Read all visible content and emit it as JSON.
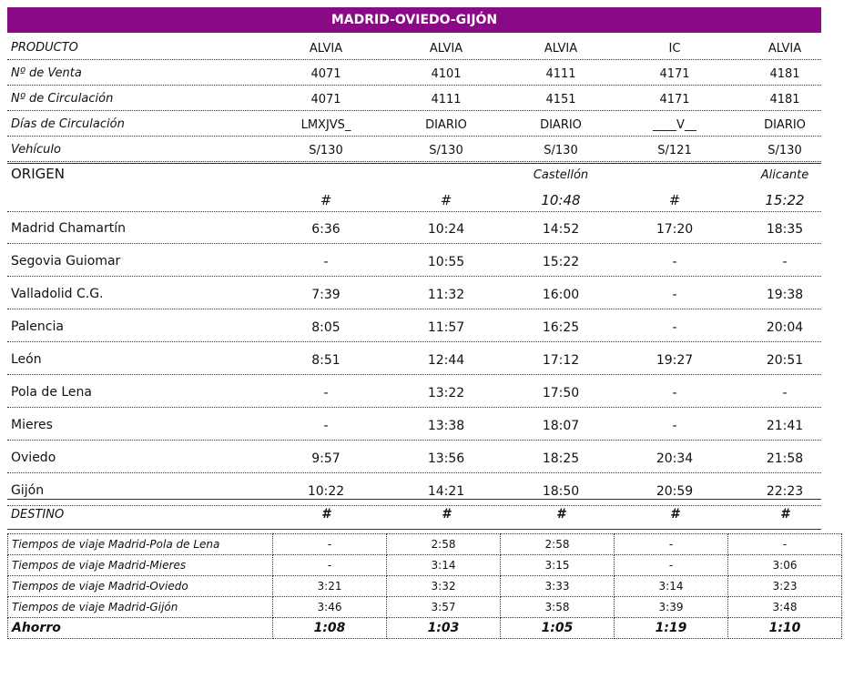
{
  "title": "MADRID-OVIEDO-GIJÓN",
  "header_rows": [
    {
      "label": "PRODUCTO",
      "values": [
        "ALVIA",
        "ALVIA",
        "ALVIA",
        "IC",
        "ALVIA"
      ]
    },
    {
      "label": "Nº de Venta",
      "values": [
        "4071",
        "4101",
        "4111",
        "4171",
        "4181"
      ]
    },
    {
      "label": "Nº de Circulación",
      "values": [
        "4071",
        "4111",
        "4151",
        "4171",
        "4181"
      ]
    },
    {
      "label": "Días de Circulación",
      "values": [
        "LMXJVS_",
        "DIARIO",
        "DIARIO",
        "____V__",
        "DIARIO"
      ]
    },
    {
      "label": "Vehículo",
      "values": [
        "S/130",
        "S/130",
        "S/130",
        "S/121",
        "S/130"
      ]
    }
  ],
  "origin": {
    "label": "ORIGEN",
    "cities": [
      "",
      "",
      "Castellón",
      "",
      "Alicante"
    ],
    "values": [
      "#",
      "#",
      "10:48",
      "#",
      "15:22"
    ]
  },
  "stations": [
    {
      "name": "Madrid Chamartín",
      "times": [
        "6:36",
        "10:24",
        "14:52",
        "17:20",
        "18:35"
      ]
    },
    {
      "name": "Segovia Guiomar",
      "times": [
        "-",
        "10:55",
        "15:22",
        "-",
        "-"
      ]
    },
    {
      "name": "Valladolid C.G.",
      "times": [
        "7:39",
        "11:32",
        "16:00",
        "-",
        "19:38"
      ]
    },
    {
      "name": "Palencia",
      "times": [
        "8:05",
        "11:57",
        "16:25",
        "-",
        "20:04"
      ]
    },
    {
      "name": "León",
      "times": [
        "8:51",
        "12:44",
        "17:12",
        "19:27",
        "20:51"
      ]
    },
    {
      "name": "Pola de Lena",
      "times": [
        "-",
        "13:22",
        "17:50",
        "-",
        "-"
      ]
    },
    {
      "name": "Mieres",
      "times": [
        "-",
        "13:38",
        "18:07",
        "-",
        "21:41"
      ]
    },
    {
      "name": "Oviedo",
      "times": [
        "9:57",
        "13:56",
        "18:25",
        "20:34",
        "21:58"
      ]
    },
    {
      "name": "Gijón",
      "times": [
        "10:22",
        "14:21",
        "18:50",
        "20:59",
        "22:23"
      ]
    }
  ],
  "destino": {
    "label": "DESTINO",
    "values": [
      "#",
      "#",
      "#",
      "#",
      "#"
    ]
  },
  "travel_times": [
    {
      "label": "Tiempos de viaje Madrid-Pola de Lena",
      "values": [
        "-",
        "2:58",
        "2:58",
        "-",
        "-"
      ]
    },
    {
      "label": "Tiempos de viaje Madrid-Mieres",
      "values": [
        "-",
        "3:14",
        "3:15",
        "-",
        "3:06"
      ]
    },
    {
      "label": "Tiempos de viaje Madrid-Oviedo",
      "values": [
        "3:21",
        "3:32",
        "3:33",
        "3:14",
        "3:23"
      ]
    },
    {
      "label": "Tiempos de viaje Madrid-Gijón",
      "values": [
        "3:46",
        "3:57",
        "3:58",
        "3:39",
        "3:48"
      ]
    }
  ],
  "ahorro": {
    "label": "Ahorro",
    "values": [
      "1:08",
      "1:03",
      "1:05",
      "1:19",
      "1:10"
    ]
  }
}
